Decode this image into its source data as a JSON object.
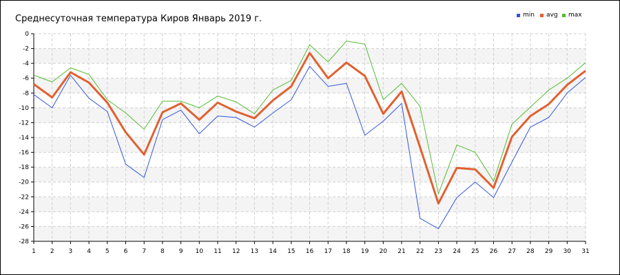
{
  "chart_data": {
    "type": "line",
    "title": "Среднесуточная температура Киров  Январь 2019 г.",
    "xlabel": "",
    "ylabel": "",
    "x": [
      1,
      2,
      3,
      4,
      5,
      6,
      7,
      8,
      9,
      10,
      11,
      12,
      13,
      14,
      15,
      16,
      17,
      18,
      19,
      20,
      21,
      22,
      23,
      24,
      25,
      26,
      27,
      28,
      29,
      30,
      31
    ],
    "xlim": [
      1,
      31
    ],
    "ylim": [
      -28,
      0
    ],
    "y_ticks": [
      0,
      -2,
      -4,
      -6,
      -8,
      -10,
      -12,
      -14,
      -16,
      -18,
      -20,
      -22,
      -24,
      -26,
      -28
    ],
    "grid": true,
    "legend_position": "top-right",
    "series": [
      {
        "name": "min",
        "color": "#3355dd",
        "values": [
          -8.2,
          -10.0,
          -5.6,
          -8.7,
          -10.5,
          -17.6,
          -19.4,
          -11.6,
          -10.3,
          -13.5,
          -11.1,
          -11.3,
          -12.6,
          -10.7,
          -8.9,
          -4.4,
          -7.1,
          -6.7,
          -13.7,
          -11.8,
          -9.4,
          -24.9,
          -26.3,
          -22.1,
          -20.0,
          -22.1,
          -17.3,
          -12.6,
          -11.3,
          -8.0,
          -5.9
        ]
      },
      {
        "name": "avg",
        "color": "#e06030",
        "values": [
          -6.8,
          -8.6,
          -5.2,
          -6.6,
          -9.3,
          -13.3,
          -16.3,
          -10.6,
          -9.4,
          -11.6,
          -9.3,
          -10.5,
          -11.4,
          -9.0,
          -7.1,
          -2.6,
          -6.0,
          -3.9,
          -5.7,
          -10.8,
          -7.8,
          -15.3,
          -22.9,
          -18.1,
          -18.3,
          -20.8,
          -13.9,
          -11.1,
          -9.5,
          -6.9,
          -5.0
        ]
      },
      {
        "name": "max",
        "color": "#55bb33",
        "values": [
          -5.6,
          -6.5,
          -4.6,
          -5.5,
          -8.9,
          -10.7,
          -12.9,
          -9.1,
          -9.1,
          -10.0,
          -8.4,
          -9.2,
          -10.8,
          -7.6,
          -6.3,
          -1.5,
          -3.8,
          -1.0,
          -1.4,
          -8.9,
          -6.7,
          -9.8,
          -21.6,
          -15.0,
          -16.0,
          -19.9,
          -12.2,
          -9.9,
          -7.6,
          -6.0,
          -3.9
        ]
      }
    ]
  }
}
